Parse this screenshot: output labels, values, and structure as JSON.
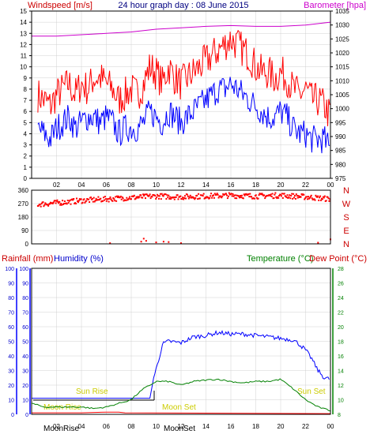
{
  "page": {
    "background": "#ffffff",
    "frame_color": "#000000",
    "grid_color": "#d0d0d0"
  },
  "chart_data": [
    {
      "id": "wind_baro",
      "type": "line",
      "title": "24 hour graph day : 08 June 2015",
      "ylabel_left": "Windspeed [m/s]",
      "ylabel_right": "Barometer [hpa]",
      "ylim_left": [
        0,
        15
      ],
      "ylim_right": [
        975,
        1035
      ],
      "yticks_left": [
        "0",
        "1",
        "2",
        "3",
        "4",
        "5",
        "6",
        "7",
        "8",
        "9",
        "10",
        "11",
        "12",
        "13",
        "14",
        "15"
      ],
      "yticks_right": [
        "975",
        "980",
        "985",
        "990",
        "995",
        "1000",
        "1005",
        "1010",
        "1015",
        "1020",
        "1025",
        "1030",
        "1035"
      ],
      "xlim": [
        0,
        24
      ],
      "xticks": [
        "02",
        "04",
        "06",
        "08",
        "10",
        "12",
        "14",
        "16",
        "18",
        "20",
        "22",
        "00"
      ],
      "series": [
        {
          "key": "gust",
          "color": "#ff0000",
          "axis": "left",
          "x": [
            0.5,
            1,
            1.5,
            2,
            2.5,
            3,
            3.5,
            4,
            4.5,
            5,
            5.5,
            6,
            6.5,
            7,
            7.5,
            8,
            8.5,
            9,
            9.5,
            10,
            10.5,
            11,
            11.5,
            12,
            12.5,
            13,
            13.5,
            14,
            14.5,
            15,
            15.5,
            16,
            16.5,
            17,
            17.5,
            18,
            18.5,
            19,
            19.5,
            20,
            20.5,
            21,
            21.5,
            22,
            22.5,
            23,
            23.5,
            24
          ],
          "y": [
            7.5,
            7,
            6.5,
            7.5,
            8,
            8.5,
            7.5,
            8.5,
            8,
            9,
            9,
            8.5,
            8,
            7,
            7.5,
            8,
            7.5,
            8.5,
            10,
            9.5,
            8.5,
            10,
            9,
            8.5,
            9,
            9.5,
            10,
            10.5,
            11,
            11.5,
            12,
            12.5,
            12,
            11.5,
            11,
            10,
            9.5,
            9.5,
            9,
            9.5,
            9,
            8,
            7.5,
            8,
            7,
            7,
            6.5,
            5.5
          ]
        },
        {
          "key": "wind",
          "color": "#0000ff",
          "axis": "left",
          "x": [
            0.5,
            1,
            1.5,
            2,
            2.5,
            3,
            3.5,
            4,
            4.5,
            5,
            5.5,
            6,
            6.5,
            7,
            7.5,
            8,
            8.5,
            9,
            9.5,
            10,
            10.5,
            11,
            11.5,
            12,
            12.5,
            13,
            13.5,
            14,
            14.5,
            15,
            15.5,
            16,
            16.5,
            17,
            17.5,
            18,
            18.5,
            19,
            19.5,
            20,
            20.5,
            21,
            21.5,
            22,
            22.5,
            23,
            23.5,
            24
          ],
          "y": [
            4.5,
            4,
            3.5,
            4.5,
            5,
            5.5,
            4.5,
            5,
            5.5,
            5.5,
            5,
            5.5,
            5,
            4,
            4.5,
            4.5,
            4.5,
            5,
            6,
            5.5,
            5,
            6,
            5.5,
            5,
            5.5,
            6,
            6.5,
            7,
            7.5,
            8,
            8,
            8.5,
            8,
            7.5,
            7,
            6.5,
            6,
            5.5,
            5.5,
            6,
            5.5,
            4.5,
            4,
            4,
            3.5,
            3.5,
            3.5,
            2.5
          ]
        },
        {
          "key": "baro",
          "color": "#cc00cc",
          "axis": "right",
          "x": [
            0,
            2,
            4,
            6,
            8,
            10,
            12,
            14,
            16,
            18,
            20,
            22,
            24
          ],
          "y": [
            1026,
            1026,
            1026.5,
            1027,
            1027.5,
            1028.5,
            1029,
            1029.5,
            1029.8,
            1029.5,
            1029.5,
            1030,
            1031
          ]
        }
      ]
    },
    {
      "id": "direction",
      "type": "scatter",
      "ylim": [
        0,
        360
      ],
      "yticks_left": [
        "0",
        "90",
        "180",
        "270",
        "360"
      ],
      "yticks_right": [
        "N",
        "E",
        "S",
        "W",
        "N"
      ],
      "xlim": [
        0,
        24
      ],
      "color": "#ff0000",
      "bands": [
        {
          "x": [
            0.5,
            2,
            4,
            6,
            8,
            10,
            12,
            14,
            16,
            18,
            20,
            22,
            24
          ],
          "y": [
            265,
            275,
            290,
            300,
            310,
            320,
            315,
            320,
            325,
            320,
            325,
            315,
            300
          ]
        }
      ],
      "outliers": {
        "x": [
          6.3,
          8.8,
          9.0,
          9.2,
          10.0,
          10.6,
          11.0,
          12.0,
          23.0,
          24.0
        ],
        "y": [
          5,
          15,
          35,
          20,
          10,
          15,
          12,
          5,
          8,
          30
        ]
      }
    },
    {
      "id": "rain_hum_temp",
      "type": "line",
      "ylabel_left_1": "Rainfall (mm)",
      "ylabel_left_2": "Humidity (%)",
      "ylabel_right_1": "Temperature (°C)",
      "ylabel_right_2": "Dew Point (°C)",
      "ylim_left": [
        0,
        100
      ],
      "ylim_right": [
        8,
        28
      ],
      "yticks_rain": [
        "0",
        "10",
        "20",
        "30",
        "40",
        "50",
        "60",
        "70",
        "80",
        "90",
        "100"
      ],
      "yticks_humidity": [
        "0",
        "10",
        "20",
        "30",
        "40",
        "50",
        "60",
        "70",
        "80",
        "90",
        "100"
      ],
      "yticks_temp": [
        "8",
        "10",
        "12",
        "14",
        "16",
        "18",
        "20",
        "22",
        "24",
        "26",
        "28"
      ],
      "xlim": [
        0,
        24
      ],
      "xticks": [
        "02",
        "04",
        "06",
        "08",
        "10",
        "12",
        "14",
        "16",
        "18",
        "20",
        "22",
        "00"
      ],
      "annotations": {
        "moon_rise_top": "Moon Rise",
        "sun_rise": "Sun Rise",
        "moon_set_top": "Moon Set",
        "sun_set": "Sun Set",
        "moon_rise_bottom": "MoonRise",
        "moon_set_bottom": "MoonSet"
      },
      "series": [
        {
          "key": "humidity",
          "color": "#0000ff",
          "axis": "left",
          "x": [
            0,
            2,
            4,
            6,
            8,
            9.5,
            9.8,
            10.2,
            10.5,
            11,
            12,
            13,
            14,
            15,
            16,
            17,
            18,
            19,
            20,
            21,
            21.5,
            22,
            22.5,
            23,
            23.5,
            24
          ],
          "y": [
            11,
            11,
            11,
            11,
            11,
            11,
            25,
            37,
            48,
            50,
            49,
            53,
            54,
            56,
            55,
            55,
            54,
            53,
            52,
            51,
            48,
            44,
            38,
            30,
            25,
            24
          ]
        },
        {
          "key": "temperature",
          "color": "#008000",
          "axis": "right",
          "x": [
            0,
            1,
            2,
            3,
            4,
            5,
            6,
            7,
            8,
            8.5,
            9,
            9.5,
            10,
            11,
            12,
            13,
            14,
            15,
            16,
            17,
            18,
            19,
            20,
            21,
            22,
            23,
            24
          ],
          "y": [
            9.5,
            9,
            9,
            9,
            9,
            8.8,
            9,
            9.5,
            10,
            10.8,
            11.5,
            12,
            12.5,
            12.5,
            12,
            12.5,
            12.7,
            12.8,
            12.5,
            12.3,
            12.5,
            12.5,
            12.8,
            11.5,
            10,
            9,
            8.5
          ]
        },
        {
          "key": "rainfall",
          "color": "#ff0000",
          "axis": "left",
          "x": [
            0,
            2,
            4,
            6,
            7,
            7.5,
            24
          ],
          "y": [
            1,
            1,
            1,
            1.5,
            1.5,
            1,
            0.5
          ]
        }
      ]
    }
  ]
}
